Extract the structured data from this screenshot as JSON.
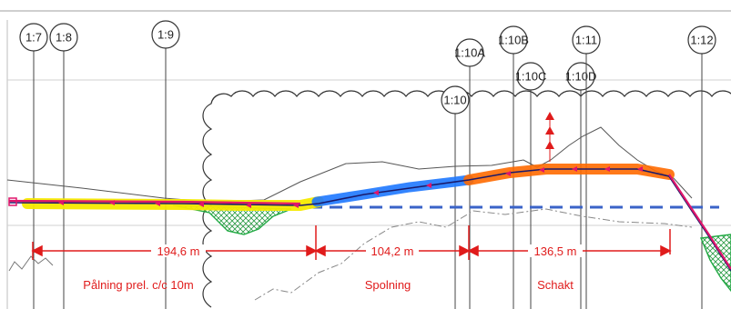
{
  "gridlines": [
    "1:7",
    "1:8",
    "1:9",
    "1:10A",
    "1:10",
    "1:10B",
    "1:10C",
    "1:10D",
    "1:11",
    "1:12"
  ],
  "dimensions": [
    "194,6 m",
    "104,2 m",
    "136,5 m"
  ],
  "sections": [
    "Pålning prel. c/c 10m",
    "Spolning",
    "Schakt"
  ],
  "colors": {
    "gridline": "#444444",
    "dimension": "#e01b1b",
    "yellow_segment": "#f5ea00",
    "blue_segment": "#1e78ff",
    "orange_segment": "#ff6a00",
    "pink_segment": "#e0156b",
    "green_hatch": "#22aa44",
    "reference_dash": "#3a63c8"
  }
}
